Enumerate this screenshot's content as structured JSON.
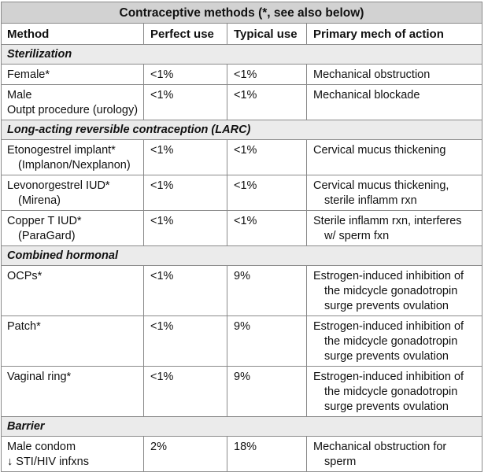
{
  "table": {
    "title": "Contraceptive methods (*, see also below)",
    "header": [
      "Method",
      "Perfect use",
      "Typical use",
      "Primary mech of action"
    ],
    "sections": [
      {
        "name": "Sterilization",
        "rows": [
          [
            [
              "Female*"
            ],
            [
              "<1%"
            ],
            [
              "<1%"
            ],
            [
              "Mechanical obstruction"
            ]
          ],
          [
            [
              "Male",
              "Outpt procedure (urology)"
            ],
            [
              "<1%"
            ],
            [
              "<1%"
            ],
            [
              "Mechanical blockade"
            ]
          ]
        ]
      },
      {
        "name": "Long-acting reversible contraception (LARC)",
        "rows": [
          [
            [
              "Etonogestrel implant*",
              "(Implanon/Nexplanon)"
            ],
            [
              "<1%"
            ],
            [
              "<1%"
            ],
            [
              "Cervical mucus thickening"
            ]
          ],
          [
            [
              "Levonorgestrel IUD*",
              "(Mirena)"
            ],
            [
              "<1%"
            ],
            [
              "<1%"
            ],
            [
              "Cervical mucus thickening,",
              "sterile inflamm rxn"
            ]
          ],
          [
            [
              "Copper T IUD*",
              "(ParaGard)"
            ],
            [
              "<1%"
            ],
            [
              "<1%"
            ],
            [
              "Sterile inflamm rxn, interferes",
              "w/ sperm fxn"
            ]
          ]
        ]
      },
      {
        "name": "Combined hormonal",
        "rows": [
          [
            [
              "OCPs*"
            ],
            [
              "<1%"
            ],
            [
              "9%"
            ],
            [
              "Estrogen-induced inhibition of",
              "the midcycle gonadotropin",
              "surge prevents ovulation"
            ]
          ],
          [
            [
              "Patch*"
            ],
            [
              "<1%"
            ],
            [
              "9%"
            ],
            [
              "Estrogen-induced inhibition of",
              "the midcycle gonadotropin",
              "surge prevents ovulation"
            ]
          ],
          [
            [
              "Vaginal ring*"
            ],
            [
              "<1%"
            ],
            [
              "9%"
            ],
            [
              "Estrogen-induced inhibition of",
              "the midcycle gonadotropin",
              "surge prevents ovulation"
            ]
          ]
        ]
      },
      {
        "name": "Barrier",
        "rows": [
          [
            [
              "Male condom",
              "↓ STI/HIV infxns"
            ],
            [
              "2%"
            ],
            [
              "18%"
            ],
            [
              "Mechanical obstruction for",
              "sperm"
            ]
          ]
        ]
      }
    ]
  }
}
